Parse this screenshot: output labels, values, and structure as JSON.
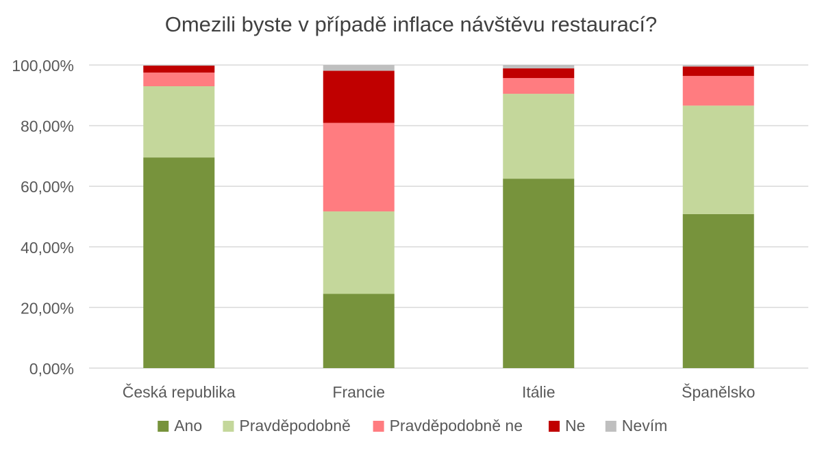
{
  "chart_data": {
    "type": "bar",
    "stacked": true,
    "title": "Omezili byste v případě inflace návštěvu restaurací?",
    "xlabel": "",
    "ylabel": "",
    "ylim": [
      0,
      100
    ],
    "y_ticks": [
      "0,00%",
      "20,00%",
      "40,00%",
      "60,00%",
      "80,00%",
      "100,00%"
    ],
    "grid": true,
    "legend_position": "bottom",
    "categories": [
      "Česká republika",
      "Francie",
      "Itálie",
      "Španělsko"
    ],
    "series": [
      {
        "name": "Ano",
        "color": "#77933c",
        "values": [
          69.5,
          24.5,
          62.5,
          50.8
        ]
      },
      {
        "name": "Pravděpodobně",
        "color": "#c4d79b",
        "values": [
          23.5,
          27.2,
          28.0,
          35.8
        ]
      },
      {
        "name": "Pravděpodobně ne",
        "color": "#ff7c80",
        "values": [
          4.5,
          29.2,
          5.2,
          9.8
        ]
      },
      {
        "name": "Ne",
        "color": "#c00000",
        "values": [
          2.3,
          17.2,
          3.2,
          3.1
        ]
      },
      {
        "name": "Nevím",
        "color": "#bfbfbf",
        "values": [
          0.2,
          1.9,
          1.1,
          0.5
        ]
      }
    ]
  }
}
